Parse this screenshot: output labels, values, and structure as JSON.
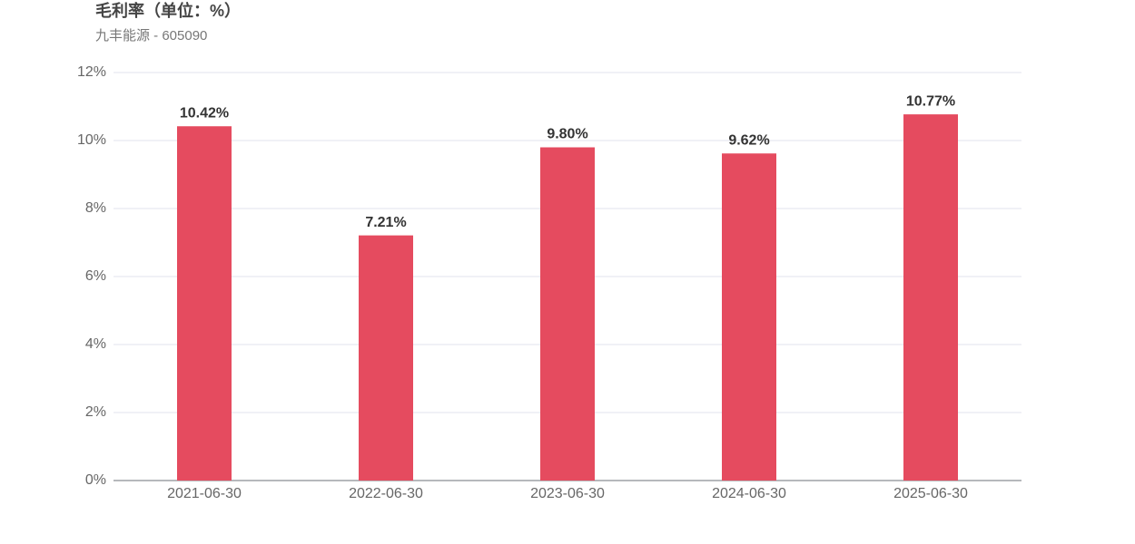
{
  "chart_data": {
    "type": "bar",
    "title": "毛利率（单位：%）",
    "subtitle": "九丰能源 - 605090",
    "categories": [
      "2021-06-30",
      "2022-06-30",
      "2023-06-30",
      "2024-06-30",
      "2025-06-30"
    ],
    "values": [
      10.42,
      7.21,
      9.8,
      9.62,
      10.77
    ],
    "value_labels": [
      "10.42%",
      "7.21%",
      "9.80%",
      "9.62%",
      "10.77%"
    ],
    "color": "#e54b5f",
    "ylim": [
      0,
      12
    ],
    "yticks": [
      {
        "value": 0,
        "label": "0%"
      },
      {
        "value": 2,
        "label": "2%"
      },
      {
        "value": 4,
        "label": "4%"
      },
      {
        "value": 6,
        "label": "6%"
      },
      {
        "value": 8,
        "label": "8%"
      },
      {
        "value": 10,
        "label": "10%"
      },
      {
        "value": 12,
        "label": "12%"
      }
    ],
    "grid": true
  }
}
